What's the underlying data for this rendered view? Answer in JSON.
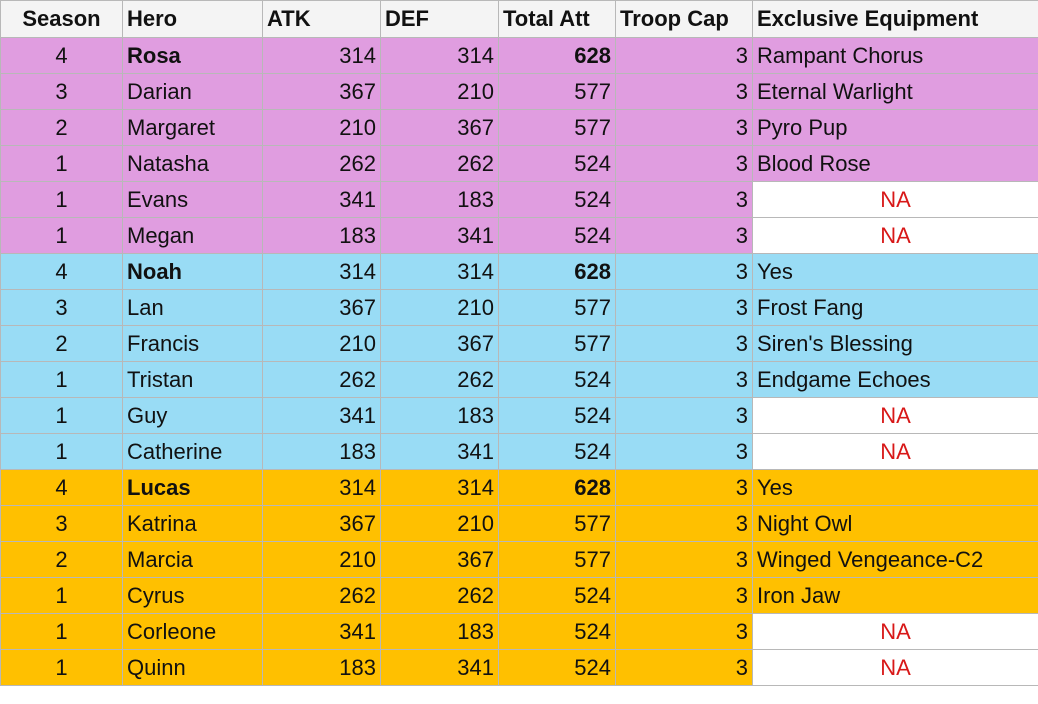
{
  "table": {
    "header": [
      "Season",
      "Hero",
      "ATK",
      "DEF",
      "Total Att",
      "Troop Cap",
      "Exclusive Equipment"
    ],
    "rows": [
      [
        4,
        "Rosa",
        314,
        314,
        628,
        3,
        "Rampant Chorus"
      ],
      [
        3,
        "Darian",
        367,
        210,
        577,
        3,
        "Eternal Warlight"
      ],
      [
        2,
        "Margaret",
        210,
        367,
        577,
        3,
        "Pyro Pup"
      ],
      [
        1,
        "Natasha",
        262,
        262,
        524,
        3,
        "Blood Rose"
      ],
      [
        1,
        "Evans",
        341,
        183,
        524,
        3,
        "NA"
      ],
      [
        1,
        "Megan",
        183,
        341,
        524,
        3,
        "NA"
      ],
      [
        4,
        "Noah",
        314,
        314,
        628,
        3,
        "Yes"
      ],
      [
        3,
        "Lan",
        367,
        210,
        577,
        3,
        "Frost Fang"
      ],
      [
        2,
        "Francis",
        210,
        367,
        577,
        3,
        "Siren's Blessing"
      ],
      [
        1,
        "Tristan",
        262,
        262,
        524,
        3,
        "Endgame Echoes"
      ],
      [
        1,
        "Guy",
        341,
        183,
        524,
        3,
        "NA"
      ],
      [
        1,
        "Catherine",
        183,
        341,
        524,
        3,
        "NA"
      ],
      [
        4,
        "Lucas",
        314,
        314,
        628,
        3,
        "Yes"
      ],
      [
        3,
        "Katrina",
        367,
        210,
        577,
        3,
        "Night Owl"
      ],
      [
        2,
        "Marcia",
        210,
        367,
        577,
        3,
        "Winged Vengeance-C2"
      ],
      [
        1,
        "Cyrus",
        262,
        262,
        524,
        3,
        "Iron Jaw"
      ],
      [
        1,
        "Corleone",
        341,
        183,
        524,
        3,
        "NA"
      ],
      [
        1,
        "Quinn",
        183,
        341,
        524,
        3,
        "NA"
      ]
    ]
  }
}
